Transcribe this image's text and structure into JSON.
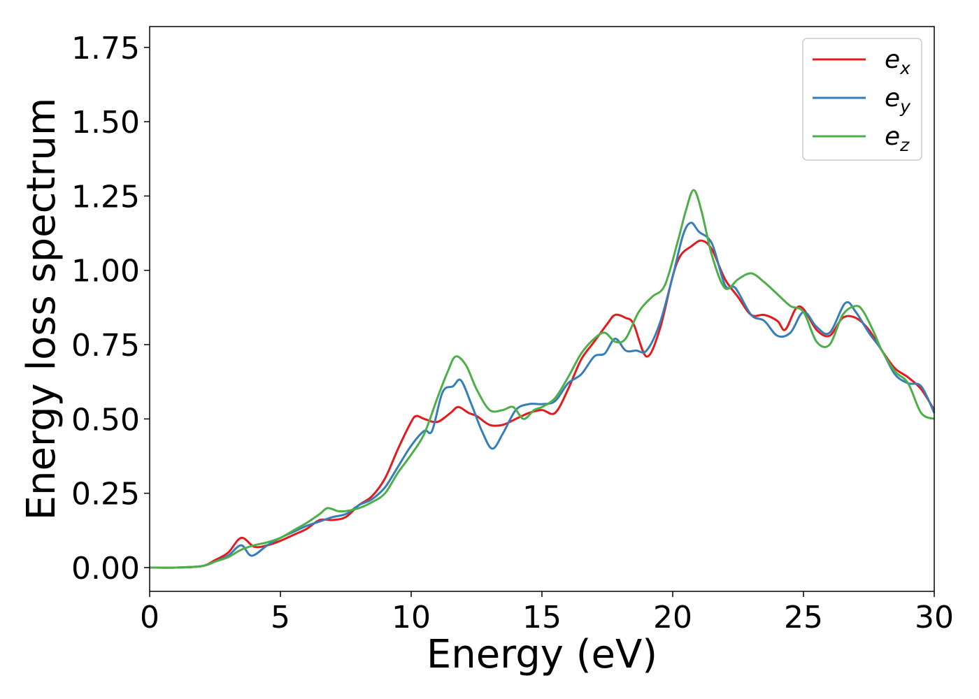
{
  "chart_data": {
    "type": "line",
    "xlabel": "Energy (eV)",
    "ylabel": "Energy loss spectrum",
    "xlim": [
      0,
      30
    ],
    "ylim": [
      -0.08,
      1.82
    ],
    "x_ticks": [
      "0",
      "5",
      "10",
      "15",
      "20",
      "25",
      "30"
    ],
    "y_ticks": [
      "0.00",
      "0.25",
      "0.50",
      "0.75",
      "1.00",
      "1.25",
      "1.50",
      "1.75"
    ],
    "grid": false,
    "legend_position": "top-right",
    "series": [
      {
        "name": "e_x",
        "legend_base": "e",
        "legend_sub": "x",
        "color": "#e41a1c",
        "x": [
          0,
          1,
          2,
          2.5,
          3,
          3.5,
          4,
          4.5,
          5,
          5.5,
          6,
          6.5,
          7,
          7.5,
          8,
          8.5,
          9,
          9.5,
          10,
          10.2,
          10.5,
          11,
          11.5,
          11.8,
          12.2,
          12.5,
          13,
          13.5,
          14,
          14.5,
          15,
          15.5,
          16,
          16.5,
          17,
          17.5,
          17.8,
          18.2,
          18.5,
          19,
          19.5,
          20,
          20.3,
          20.7,
          21.1,
          21.5,
          22,
          22.5,
          23,
          23.5,
          24,
          24.3,
          24.7,
          25,
          25.5,
          26,
          26.5,
          27,
          27.5,
          28,
          28.5,
          29,
          29.5,
          30
        ],
        "y": [
          0,
          0,
          0.005,
          0.025,
          0.05,
          0.1,
          0.07,
          0.075,
          0.09,
          0.11,
          0.13,
          0.16,
          0.16,
          0.17,
          0.21,
          0.24,
          0.3,
          0.4,
          0.49,
          0.51,
          0.5,
          0.49,
          0.52,
          0.54,
          0.52,
          0.51,
          0.48,
          0.48,
          0.5,
          0.52,
          0.53,
          0.52,
          0.6,
          0.7,
          0.76,
          0.82,
          0.85,
          0.84,
          0.82,
          0.71,
          0.8,
          0.98,
          1.05,
          1.08,
          1.1,
          1.07,
          0.97,
          0.91,
          0.85,
          0.85,
          0.83,
          0.8,
          0.87,
          0.87,
          0.8,
          0.78,
          0.84,
          0.84,
          0.8,
          0.73,
          0.67,
          0.64,
          0.6,
          0.53
        ]
      },
      {
        "name": "e_y",
        "legend_base": "e",
        "legend_sub": "y",
        "color": "#377eb8",
        "x": [
          0,
          1,
          2,
          2.5,
          3,
          3.5,
          3.9,
          4.5,
          5,
          5.5,
          6,
          6.5,
          7,
          7.5,
          8,
          8.5,
          9,
          9.5,
          10,
          10.5,
          10.8,
          11.2,
          11.6,
          11.9,
          12.3,
          12.7,
          13.1,
          13.5,
          14,
          14.5,
          15,
          15.5,
          16,
          16.5,
          17,
          17.4,
          17.8,
          18.2,
          18.6,
          19,
          19.5,
          20,
          20.4,
          20.7,
          21,
          21.5,
          22,
          22.4,
          23,
          23.5,
          24,
          24.5,
          25,
          25.5,
          26,
          26.6,
          27,
          27.5,
          28,
          28.5,
          29,
          29.5,
          30
        ],
        "y": [
          0,
          0,
          0.005,
          0.02,
          0.04,
          0.075,
          0.04,
          0.075,
          0.1,
          0.12,
          0.14,
          0.155,
          0.17,
          0.18,
          0.21,
          0.23,
          0.27,
          0.34,
          0.41,
          0.46,
          0.46,
          0.59,
          0.61,
          0.63,
          0.55,
          0.46,
          0.4,
          0.45,
          0.53,
          0.55,
          0.55,
          0.56,
          0.62,
          0.65,
          0.71,
          0.72,
          0.77,
          0.73,
          0.73,
          0.73,
          0.82,
          0.98,
          1.12,
          1.16,
          1.13,
          1.09,
          0.95,
          0.94,
          0.85,
          0.83,
          0.78,
          0.79,
          0.86,
          0.81,
          0.79,
          0.89,
          0.86,
          0.79,
          0.73,
          0.65,
          0.62,
          0.61,
          0.52
        ]
      },
      {
        "name": "e_z",
        "legend_base": "e",
        "legend_sub": "z",
        "color": "#4daf4a",
        "x": [
          0,
          1,
          2,
          2.5,
          3,
          3.5,
          4,
          4.5,
          5,
          5.5,
          6,
          6.5,
          6.8,
          7.2,
          7.5,
          8,
          8.5,
          9,
          9.5,
          10,
          10.5,
          11,
          11.4,
          11.7,
          12.1,
          12.5,
          13,
          13.5,
          13.9,
          14.3,
          14.7,
          15,
          15.5,
          16,
          16.5,
          17,
          17.4,
          17.8,
          18.2,
          18.7,
          19.2,
          19.7,
          20.2,
          20.5,
          20.8,
          21.1,
          21.5,
          22,
          22.5,
          23,
          23.5,
          24,
          24.5,
          25,
          25.5,
          26,
          26.5,
          27,
          27.3,
          27.7,
          28,
          28.5,
          29,
          29.5,
          30
        ],
        "y": [
          0,
          0,
          0.005,
          0.02,
          0.035,
          0.06,
          0.075,
          0.085,
          0.1,
          0.125,
          0.15,
          0.18,
          0.2,
          0.19,
          0.19,
          0.2,
          0.22,
          0.25,
          0.32,
          0.38,
          0.45,
          0.57,
          0.66,
          0.71,
          0.68,
          0.6,
          0.53,
          0.53,
          0.54,
          0.5,
          0.53,
          0.54,
          0.57,
          0.64,
          0.72,
          0.77,
          0.79,
          0.76,
          0.77,
          0.86,
          0.91,
          0.95,
          1.1,
          1.2,
          1.27,
          1.2,
          1.05,
          0.94,
          0.97,
          0.99,
          0.96,
          0.92,
          0.88,
          0.86,
          0.76,
          0.75,
          0.85,
          0.88,
          0.86,
          0.79,
          0.73,
          0.66,
          0.62,
          0.52,
          0.5
        ]
      }
    ]
  }
}
